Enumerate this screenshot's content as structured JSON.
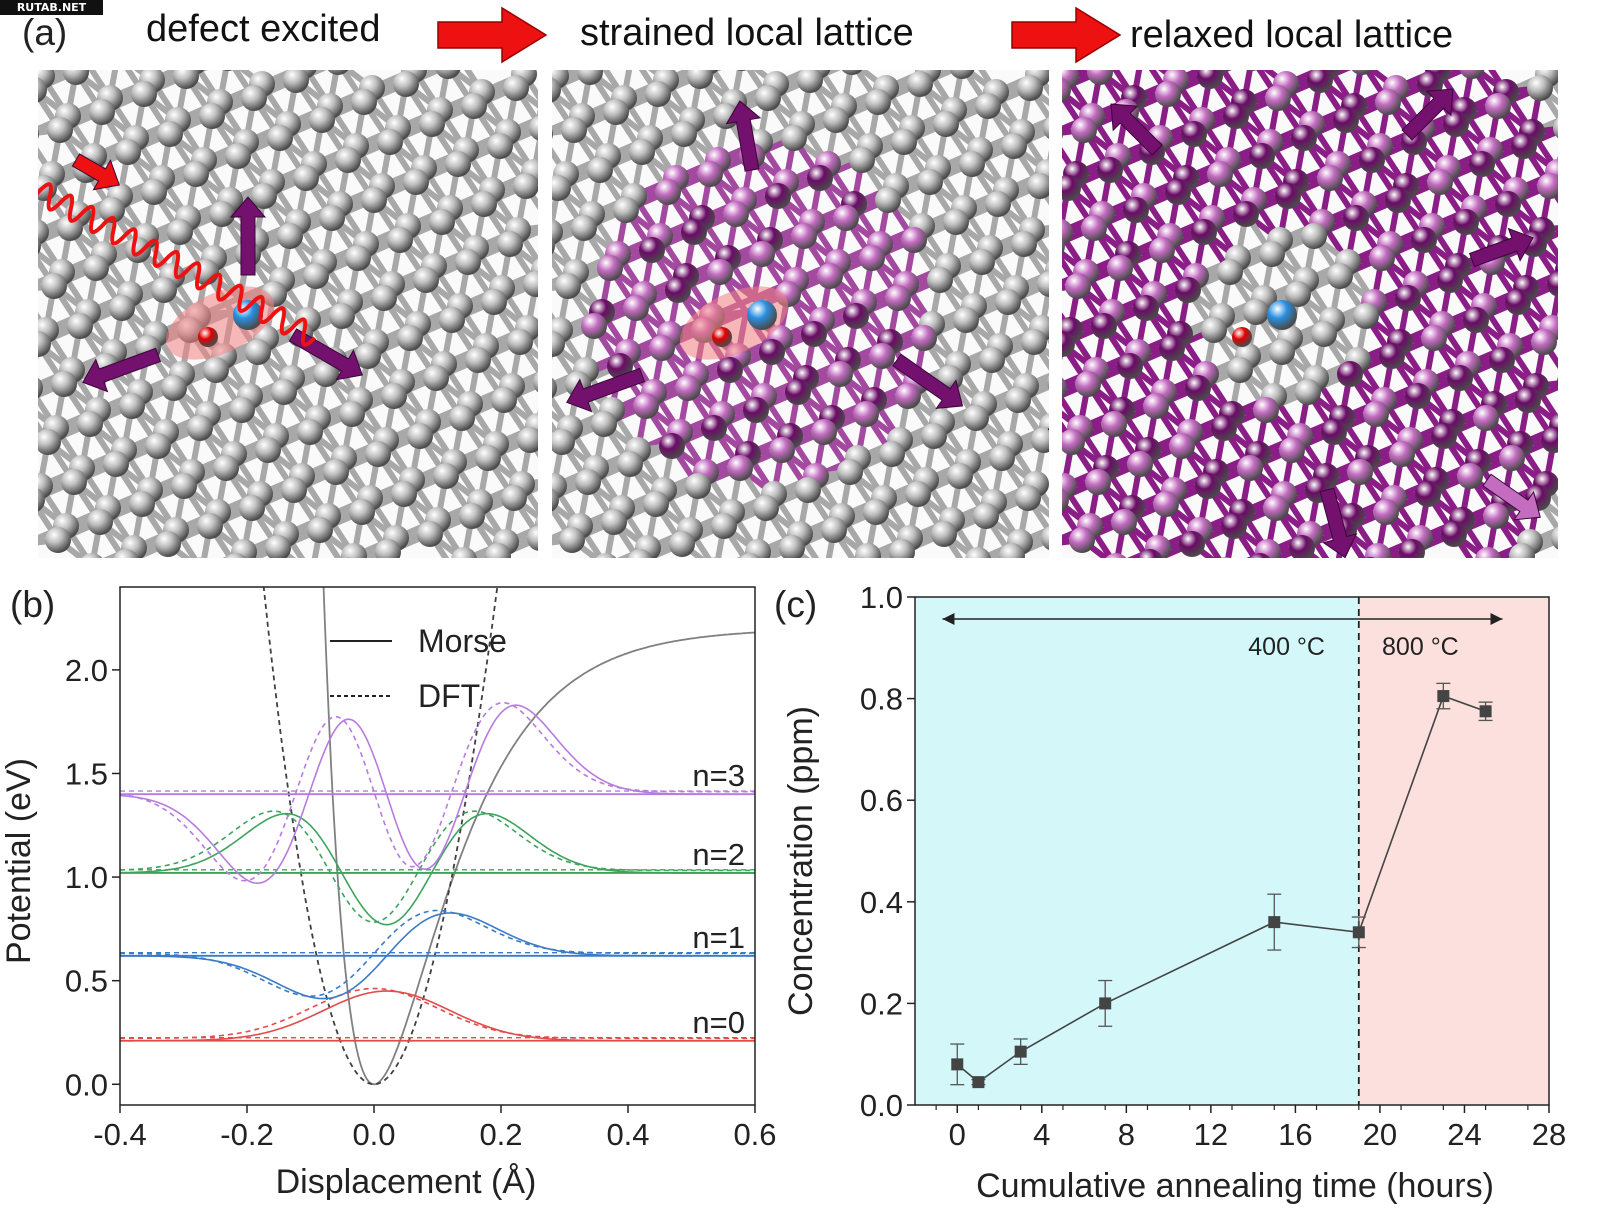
{
  "watermark": "RUTAB.NET",
  "panel_a": {
    "label": "(a)",
    "titles": [
      "defect excited",
      "strained local lattice",
      "relaxed local lattice"
    ],
    "colors": {
      "arrow_red": "#ee1111",
      "arrow_purple": "#74106e",
      "atom_gray": "#bdbdbd",
      "atom_dark": "#6a0c66",
      "atom_light": "#c36cc0",
      "atom_blue": "#2a8fe0",
      "atom_red": "#e00000",
      "glow": "#f08080"
    }
  },
  "panel_b": {
    "label": "(b)",
    "chart_data": {
      "type": "line",
      "xlabel": "Displacement (Å)",
      "ylabel": "Potential (eV)",
      "xlim": [
        -0.4,
        0.6
      ],
      "ylim": [
        -0.1,
        2.4
      ],
      "xticks": [
        "-0.4",
        "-0.2",
        "0.0",
        "0.2",
        "0.4",
        "0.6"
      ],
      "yticks": [
        "0.0",
        "0.5",
        "1.0",
        "1.5",
        "2.0"
      ],
      "legend": [
        "Morse",
        "DFT"
      ],
      "legend_position": "top-center",
      "series": [
        {
          "name": "Morse potential",
          "style": "solid",
          "color": "#808080",
          "D": 2.2,
          "a": 9.0,
          "r0": 0.0
        },
        {
          "name": "DFT potential",
          "style": "dashed",
          "color": "#404040",
          "k": 72.0,
          "r0": 0.0
        }
      ],
      "levels": [
        {
          "label": "n=0",
          "n": 0,
          "energy": 0.21,
          "color": "#e34a4a"
        },
        {
          "label": "n=1",
          "n": 1,
          "energy": 0.62,
          "color": "#3a7bc8"
        },
        {
          "label": "n=2",
          "n": 2,
          "energy": 1.02,
          "color": "#3da35d"
        },
        {
          "label": "n=3",
          "n": 3,
          "energy": 1.4,
          "color": "#b77be0"
        }
      ],
      "wavefunction_scale": 0.24,
      "wavefunction_width": 0.1
    }
  },
  "panel_c": {
    "label": "(c)",
    "chart_data": {
      "type": "scatter",
      "xlabel": "Cumulative annealing time (hours)",
      "ylabel": "Concentration (ppm)",
      "xlim": [
        -2,
        28
      ],
      "ylim": [
        0,
        1.0
      ],
      "xticks": [
        "0",
        "4",
        "8",
        "12",
        "16",
        "20",
        "24",
        "28"
      ],
      "yticks": [
        "0.0",
        "0.2",
        "0.4",
        "0.6",
        "0.8",
        "1.0"
      ],
      "x": [
        0,
        1,
        3,
        7,
        15,
        19,
        23,
        25
      ],
      "y": [
        0.08,
        0.045,
        0.105,
        0.2,
        0.36,
        0.34,
        0.805,
        0.775
      ],
      "yerr": [
        0.04,
        0.005,
        0.025,
        0.045,
        0.055,
        0.03,
        0.025,
        0.018
      ],
      "regions": [
        {
          "label": "400 °C",
          "from": -2,
          "to": 19,
          "color": "#d4f8fa"
        },
        {
          "label": "800 °C",
          "from": 19,
          "to": 28,
          "color": "#fbe0de"
        }
      ],
      "divider_x": 19,
      "marker_color": "#444444"
    }
  }
}
